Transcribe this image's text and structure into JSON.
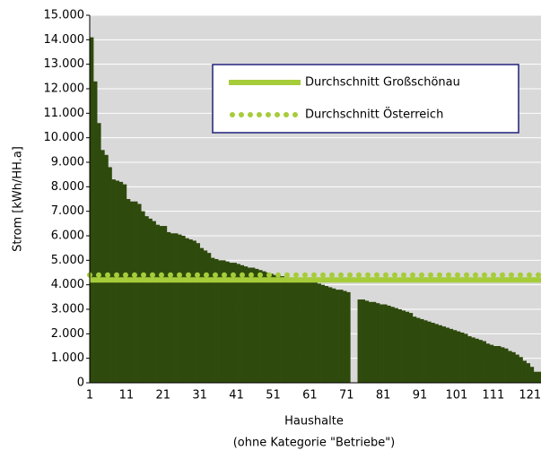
{
  "chart_data": {
    "type": "bar",
    "x_label": "Haushalte",
    "x_label_note": "(ohne Kategorie \"Betriebe\")",
    "y_label": "Strom [kWh/HH.a]",
    "categories": [
      "1",
      null,
      null,
      null,
      null,
      null,
      null,
      null,
      null,
      null,
      "11",
      null,
      null,
      null,
      null,
      null,
      null,
      null,
      null,
      null,
      "21",
      null,
      null,
      null,
      null,
      null,
      null,
      null,
      null,
      null,
      "31",
      null,
      null,
      null,
      null,
      null,
      null,
      null,
      null,
      null,
      "41",
      null,
      null,
      null,
      null,
      null,
      null,
      null,
      null,
      null,
      "51",
      null,
      null,
      null,
      null,
      null,
      null,
      null,
      null,
      null,
      "61",
      null,
      null,
      null,
      null,
      null,
      null,
      null,
      null,
      null,
      "71",
      null,
      null,
      null,
      null,
      null,
      null,
      null,
      null,
      null,
      "81",
      null,
      null,
      null,
      null,
      null,
      null,
      null,
      null,
      null,
      "91",
      null,
      null,
      null,
      null,
      null,
      null,
      null,
      null,
      null,
      "101",
      null,
      null,
      null,
      null,
      null,
      null,
      null,
      null,
      null,
      "111",
      null,
      null,
      null,
      null,
      null,
      null,
      null,
      null,
      null,
      "121",
      null,
      null
    ],
    "values": [
      14100,
      12300,
      10600,
      9500,
      9300,
      8800,
      8300,
      8250,
      8200,
      8100,
      7500,
      7400,
      7400,
      7300,
      7000,
      6800,
      6700,
      6600,
      6450,
      6400,
      6400,
      6150,
      6100,
      6100,
      6050,
      6000,
      5900,
      5850,
      5800,
      5700,
      5500,
      5400,
      5300,
      5100,
      5050,
      5000,
      5000,
      4950,
      4900,
      4900,
      4850,
      4800,
      4750,
      4700,
      4700,
      4650,
      4600,
      4550,
      4500,
      4450,
      4400,
      4400,
      4350,
      4300,
      4300,
      4250,
      4250,
      4200,
      4200,
      4200,
      4150,
      4100,
      4050,
      4000,
      3950,
      3900,
      3850,
      3800,
      3800,
      3750,
      3700,
      0,
      0,
      3400,
      3400,
      3350,
      3300,
      3300,
      3250,
      3200,
      3200,
      3150,
      3100,
      3050,
      3000,
      2950,
      2900,
      2850,
      2700,
      2650,
      2600,
      2550,
      2500,
      2450,
      2400,
      2350,
      2300,
      2250,
      2200,
      2150,
      2100,
      2050,
      2000,
      1900,
      1850,
      1800,
      1750,
      1700,
      1600,
      1550,
      1500,
      1500,
      1450,
      1400,
      1300,
      1250,
      1150,
      1050,
      900,
      800,
      650,
      450,
      450
    ],
    "color": "#2e4a0c",
    "reference_lines": [
      {
        "name": "Durchschnitt Großschönau",
        "value": 4200,
        "color": "#a6cc3a",
        "style": "solid"
      },
      {
        "name": "Durchschnitt Österreich",
        "value": 4400,
        "color": "#a6cc3a",
        "style": "dotted"
      }
    ],
    "ylim": [
      0,
      15000
    ],
    "yticks": [
      0,
      {
        "value": 1000,
        "label": "1.000"
      },
      {
        "value": 2000,
        "label": "2.000"
      },
      {
        "value": 3000,
        "label": "3.000"
      },
      {
        "value": 4000,
        "label": "4.000"
      },
      {
        "value": 5000,
        "label": "5.000"
      },
      {
        "value": 6000,
        "label": "6.000"
      },
      {
        "value": 7000,
        "label": "7.000"
      },
      {
        "value": 8000,
        "label": "8.000"
      },
      {
        "value": 9000,
        "label": "9.000"
      },
      {
        "value": 10000,
        "label": "10.000"
      },
      {
        "value": 11000,
        "label": "11.000"
      },
      {
        "value": 12000,
        "label": "12.000"
      },
      {
        "value": 13000,
        "label": "13.000"
      },
      {
        "value": 14000,
        "label": "14.000"
      },
      {
        "value": 15000,
        "label": "15.000"
      }
    ],
    "grid": true,
    "legend": "upper right"
  }
}
